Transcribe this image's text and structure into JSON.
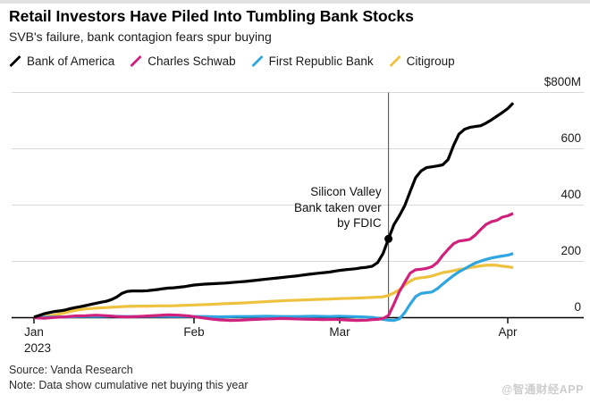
{
  "header": {
    "title": "Retail Investors Have Piled Into Tumbling Bank Stocks",
    "subtitle": "SVB's failure, bank contagion fears spur buying"
  },
  "footer": {
    "source": "Source: Vanda Research",
    "note": "Note: Data show cumulative net buying this year",
    "watermark": "@智通财经APP"
  },
  "chart_data": {
    "type": "line",
    "title": "Retail Investors Have Piled Into Tumbling Bank Stocks",
    "subtitle": "SVB's failure, bank contagion fears spur buying",
    "unit": "$M",
    "note": "Data show cumulative net buying this year",
    "source": "Vanda Research",
    "grid": true,
    "legend_position": "top",
    "colors": {
      "gridline": "#d9d9d9",
      "axis": "#000000",
      "event_line": "#5a5a5a",
      "text": "#1a1a1a",
      "watermark": "#cdcdcd"
    },
    "x_axis": {
      "description": "days since Jan 1 2023",
      "domain_days": [
        0,
        91
      ],
      "months": [
        {
          "label": "Jan",
          "sublabel": "2023",
          "day": 0
        },
        {
          "label": "Feb",
          "day": 31
        },
        {
          "label": "Mar",
          "day": 59
        },
        {
          "label": "Apr",
          "day": 90
        }
      ]
    },
    "y_axis": {
      "range": [
        0,
        800
      ],
      "ticks": [
        {
          "label": "$800M",
          "value": 800
        },
        {
          "label": "600",
          "value": 600
        },
        {
          "label": "400",
          "value": 400
        },
        {
          "label": "200",
          "value": 200
        },
        {
          "label": "0",
          "value": 0
        }
      ]
    },
    "annotation": {
      "lines": [
        "Silicon Valley",
        "Bank taken over",
        "by FDIC"
      ],
      "event_day": 68,
      "event_date": "2023-03-10",
      "marker_series": "Bank of America",
      "marker_value": 280
    },
    "series": [
      {
        "name": "Citigroup",
        "color": "#eec23f",
        "points": [
          [
            0,
            0
          ],
          [
            2,
            4
          ],
          [
            4,
            10
          ],
          [
            6,
            17
          ],
          [
            8,
            26
          ],
          [
            10,
            31
          ],
          [
            12,
            34
          ],
          [
            14,
            36
          ],
          [
            16,
            38
          ],
          [
            18,
            40
          ],
          [
            20,
            41
          ],
          [
            22,
            41
          ],
          [
            24,
            42
          ],
          [
            26,
            42
          ],
          [
            28,
            43
          ],
          [
            31,
            45
          ],
          [
            34,
            47
          ],
          [
            37,
            50
          ],
          [
            40,
            52
          ],
          [
            43,
            55
          ],
          [
            46,
            58
          ],
          [
            49,
            61
          ],
          [
            52,
            63
          ],
          [
            55,
            65
          ],
          [
            57,
            66
          ],
          [
            59,
            68
          ],
          [
            61,
            69
          ],
          [
            63,
            70
          ],
          [
            65,
            72
          ],
          [
            67,
            74
          ],
          [
            68,
            79
          ],
          [
            69,
            88
          ],
          [
            70,
            99
          ],
          [
            71,
            116
          ],
          [
            72,
            130
          ],
          [
            73,
            139
          ],
          [
            74,
            142
          ],
          [
            75,
            144
          ],
          [
            76,
            148
          ],
          [
            77,
            154
          ],
          [
            78,
            160
          ],
          [
            79,
            163
          ],
          [
            80,
            167
          ],
          [
            81,
            171
          ],
          [
            82,
            174
          ],
          [
            83,
            178
          ],
          [
            84,
            181
          ],
          [
            85,
            184
          ],
          [
            86,
            186
          ],
          [
            87,
            187
          ],
          [
            88,
            186
          ],
          [
            89,
            183
          ],
          [
            90,
            181
          ],
          [
            91,
            178
          ]
        ]
      },
      {
        "name": "First Republic Bank",
        "color": "#2fa6e0",
        "points": [
          [
            0,
            0
          ],
          [
            3,
            2
          ],
          [
            6,
            3
          ],
          [
            9,
            4
          ],
          [
            12,
            4
          ],
          [
            15,
            5
          ],
          [
            18,
            4
          ],
          [
            21,
            4
          ],
          [
            24,
            5
          ],
          [
            27,
            4
          ],
          [
            30,
            4
          ],
          [
            33,
            4
          ],
          [
            36,
            3
          ],
          [
            39,
            4
          ],
          [
            42,
            4
          ],
          [
            45,
            5
          ],
          [
            48,
            4
          ],
          [
            51,
            4
          ],
          [
            54,
            5
          ],
          [
            57,
            4
          ],
          [
            59,
            5
          ],
          [
            61,
            4
          ],
          [
            63,
            3
          ],
          [
            65,
            1
          ],
          [
            66,
            -2
          ],
          [
            67,
            -6
          ],
          [
            68,
            -9
          ],
          [
            69,
            -10
          ],
          [
            70,
            -4
          ],
          [
            71,
            18
          ],
          [
            72,
            48
          ],
          [
            73,
            75
          ],
          [
            74,
            86
          ],
          [
            75,
            89
          ],
          [
            76,
            91
          ],
          [
            77,
            103
          ],
          [
            78,
            119
          ],
          [
            79,
            135
          ],
          [
            80,
            150
          ],
          [
            81,
            163
          ],
          [
            82,
            173
          ],
          [
            83,
            184
          ],
          [
            84,
            194
          ],
          [
            85,
            201
          ],
          [
            86,
            207
          ],
          [
            87,
            212
          ],
          [
            88,
            216
          ],
          [
            89,
            219
          ],
          [
            90,
            222
          ],
          [
            91,
            228
          ]
        ]
      },
      {
        "name": "Charles Schwab",
        "color": "#d0217c",
        "points": [
          [
            0,
            0
          ],
          [
            2,
            -2
          ],
          [
            4,
            1
          ],
          [
            6,
            3
          ],
          [
            8,
            6
          ],
          [
            10,
            7
          ],
          [
            12,
            9
          ],
          [
            14,
            7
          ],
          [
            16,
            4
          ],
          [
            18,
            3
          ],
          [
            20,
            4
          ],
          [
            22,
            6
          ],
          [
            24,
            8
          ],
          [
            26,
            10
          ],
          [
            28,
            9
          ],
          [
            30,
            6
          ],
          [
            32,
            1
          ],
          [
            34,
            -4
          ],
          [
            36,
            -8
          ],
          [
            38,
            -10
          ],
          [
            40,
            -9
          ],
          [
            42,
            -7
          ],
          [
            44,
            -5
          ],
          [
            46,
            -4
          ],
          [
            48,
            -3
          ],
          [
            50,
            -4
          ],
          [
            52,
            -5
          ],
          [
            54,
            -6
          ],
          [
            56,
            -7
          ],
          [
            58,
            -6
          ],
          [
            60,
            -8
          ],
          [
            62,
            -10
          ],
          [
            64,
            -9
          ],
          [
            65,
            -7
          ],
          [
            66,
            -6
          ],
          [
            67,
            -3
          ],
          [
            68,
            8
          ],
          [
            69,
            48
          ],
          [
            70,
            92
          ],
          [
            71,
            126
          ],
          [
            72,
            158
          ],
          [
            73,
            170
          ],
          [
            74,
            172
          ],
          [
            75,
            175
          ],
          [
            76,
            181
          ],
          [
            77,
            196
          ],
          [
            78,
            221
          ],
          [
            79,
            243
          ],
          [
            80,
            263
          ],
          [
            81,
            272
          ],
          [
            82,
            275
          ],
          [
            83,
            278
          ],
          [
            84,
            293
          ],
          [
            85,
            313
          ],
          [
            86,
            331
          ],
          [
            87,
            341
          ],
          [
            88,
            346
          ],
          [
            89,
            357
          ],
          [
            90,
            362
          ],
          [
            91,
            370
          ]
        ]
      },
      {
        "name": "Bank of America",
        "color": "#000000",
        "points": [
          [
            0,
            2
          ],
          [
            1,
            8
          ],
          [
            2,
            14
          ],
          [
            3,
            18
          ],
          [
            4,
            22
          ],
          [
            5,
            24
          ],
          [
            6,
            27
          ],
          [
            7,
            32
          ],
          [
            8,
            36
          ],
          [
            9,
            39
          ],
          [
            10,
            43
          ],
          [
            11,
            47
          ],
          [
            12,
            51
          ],
          [
            13,
            55
          ],
          [
            14,
            58
          ],
          [
            15,
            64
          ],
          [
            16,
            73
          ],
          [
            17,
            86
          ],
          [
            18,
            93
          ],
          [
            19,
            95
          ],
          [
            20,
            95
          ],
          [
            21,
            95
          ],
          [
            22,
            96
          ],
          [
            23,
            98
          ],
          [
            24,
            100
          ],
          [
            25,
            103
          ],
          [
            26,
            105
          ],
          [
            27,
            106
          ],
          [
            28,
            108
          ],
          [
            29,
            110
          ],
          [
            30,
            113
          ],
          [
            31,
            116
          ],
          [
            33,
            119
          ],
          [
            35,
            121
          ],
          [
            37,
            123
          ],
          [
            39,
            126
          ],
          [
            41,
            129
          ],
          [
            43,
            133
          ],
          [
            45,
            137
          ],
          [
            47,
            141
          ],
          [
            49,
            145
          ],
          [
            51,
            149
          ],
          [
            53,
            154
          ],
          [
            55,
            158
          ],
          [
            57,
            162
          ],
          [
            59,
            168
          ],
          [
            60,
            170
          ],
          [
            61,
            172
          ],
          [
            62,
            174
          ],
          [
            63,
            177
          ],
          [
            64,
            179
          ],
          [
            65,
            183
          ],
          [
            66,
            196
          ],
          [
            67,
            228
          ],
          [
            68,
            280
          ],
          [
            69,
            330
          ],
          [
            70,
            362
          ],
          [
            71,
            398
          ],
          [
            72,
            448
          ],
          [
            73,
            497
          ],
          [
            74,
            521
          ],
          [
            75,
            533
          ],
          [
            76,
            536
          ],
          [
            77,
            539
          ],
          [
            78,
            543
          ],
          [
            79,
            562
          ],
          [
            80,
            612
          ],
          [
            81,
            652
          ],
          [
            82,
            669
          ],
          [
            83,
            676
          ],
          [
            84,
            679
          ],
          [
            85,
            682
          ],
          [
            86,
            691
          ],
          [
            87,
            703
          ],
          [
            88,
            716
          ],
          [
            89,
            729
          ],
          [
            90,
            743
          ],
          [
            91,
            763
          ]
        ]
      }
    ],
    "legend_order": [
      "Bank of America",
      "Charles Schwab",
      "First Republic Bank",
      "Citigroup"
    ]
  }
}
